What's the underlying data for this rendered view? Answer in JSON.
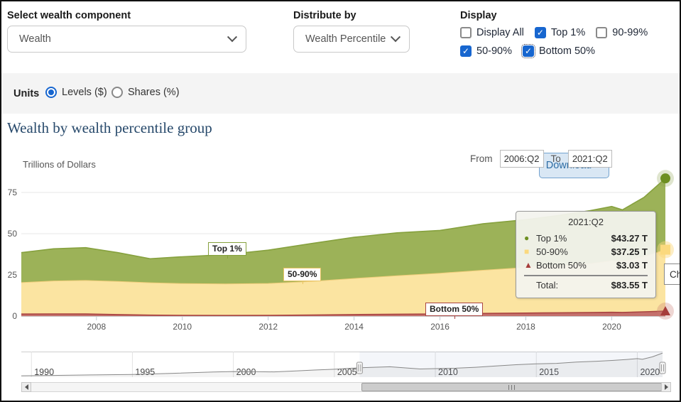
{
  "controls": {
    "component": {
      "label": "Select wealth component",
      "value": "Wealth"
    },
    "distribute": {
      "label": "Distribute by",
      "value": "Wealth Percentile"
    },
    "display": {
      "label": "Display",
      "options": [
        {
          "label": "Display All",
          "checked": false,
          "focused": false
        },
        {
          "label": "Top 1%",
          "checked": true,
          "focused": false
        },
        {
          "label": "90-99%",
          "checked": false,
          "focused": false
        },
        {
          "label": "50-90%",
          "checked": true,
          "focused": false
        },
        {
          "label": "Bottom 50%",
          "checked": true,
          "focused": true
        }
      ]
    }
  },
  "units": {
    "label": "Units",
    "options": [
      {
        "label": "Levels ($)",
        "selected": true
      },
      {
        "label": "Shares (%)",
        "selected": false
      }
    ],
    "download_label": "Download"
  },
  "range": {
    "from_label": "From",
    "from_value": "2006:Q2",
    "to_label": "To",
    "to_value": "2021:Q2"
  },
  "tooltip": {
    "header": "2021:Q2",
    "rows": [
      {
        "name": "Top 1%",
        "value": "$43.27 T",
        "marker": "circle",
        "color": "#6d8f22"
      },
      {
        "name": "50-90%",
        "value": "$37.25 T",
        "marker": "square",
        "color": "#fbd97e"
      },
      {
        "name": "Bottom 50%",
        "value": "$3.03 T",
        "marker": "triangle",
        "color": "#a63d3b"
      }
    ],
    "total_label": "Total:",
    "total_value": "$83.55 T"
  },
  "partial_button": {
    "label": "Ch"
  },
  "icons": {
    "check": "✓",
    "marker_circle": "●",
    "marker_square": "■",
    "marker_triangle": "▲"
  },
  "colors": {
    "accent_blue": "#1766cf",
    "link_blue": "#2e6da4",
    "title_blue": "#27496b"
  },
  "chart_data": {
    "type": "area",
    "stacked": true,
    "title": "Wealth by wealth percentile group",
    "y_axis_title": "Trillions of Dollars",
    "ylim": [
      0,
      87
    ],
    "y_ticks": [
      0,
      25,
      50,
      75
    ],
    "x_ticks": [
      2008,
      2010,
      2012,
      2014,
      2016,
      2018,
      2020
    ],
    "x_range": [
      2006.25,
      2021.25
    ],
    "grid": true,
    "legend": "flags-on-series",
    "x": [
      2006.25,
      2007,
      2007.75,
      2008.5,
      2009.25,
      2010,
      2011,
      2012,
      2013,
      2014,
      2015,
      2016,
      2017,
      2018,
      2018.75,
      2019.5,
      2020,
      2020.25,
      2020.75,
      2021.25
    ],
    "series": [
      {
        "name": "Bottom 50%",
        "marker": "triangle",
        "line": "#a94441",
        "fill": "#c4706c",
        "values": [
          1.2,
          1.3,
          1.25,
          0.9,
          0.55,
          0.45,
          0.35,
          0.4,
          0.6,
          0.9,
          1.1,
          1.3,
          1.6,
          1.8,
          2.0,
          2.1,
          2.3,
          2.2,
          2.6,
          3.03
        ]
      },
      {
        "name": "50-90%",
        "marker": "square",
        "line": "#f0cd7a",
        "fill": "#fbe4a1",
        "values": [
          19.1,
          20.0,
          20.35,
          20.1,
          19.65,
          19.25,
          19.15,
          19.4,
          20.4,
          21.9,
          23.4,
          24.7,
          26.2,
          27.7,
          28.5,
          29.7,
          31.2,
          30.8,
          33.4,
          37.25
        ]
      },
      {
        "name": "Top 1%",
        "marker": "circle",
        "line": "#86a13e",
        "fill": "#9cb258",
        "values": [
          18.2,
          19.5,
          19.9,
          17.5,
          14.6,
          16.3,
          17.8,
          20.2,
          23.0,
          25.0,
          26.0,
          26.0,
          28.2,
          29.0,
          30.5,
          32.2,
          33.0,
          31.5,
          36.0,
          43.27
        ]
      }
    ],
    "navigator": {
      "x_ticks": [
        1990,
        1995,
        2000,
        2005,
        2010,
        2015,
        2020
      ],
      "x_range": [
        1989.5,
        2021.25
      ],
      "selection": [
        2006.25,
        2021.25
      ],
      "x": [
        1989.5,
        1991,
        1993,
        1995,
        1997,
        1999,
        2000,
        2001,
        2002,
        2003,
        2004,
        2005,
        2006.25,
        2007.75,
        2009.25,
        2010,
        2011,
        2012,
        2013,
        2014,
        2015,
        2016,
        2017,
        2018,
        2018.75,
        2019.5,
        2020,
        2020.25,
        2020.75,
        2021.25
      ],
      "total": [
        14,
        15,
        16.5,
        18,
        21.5,
        25.5,
        27,
        26.5,
        26,
        28.5,
        31.5,
        34,
        38.5,
        41.5,
        34.8,
        36,
        37.3,
        40,
        44,
        47.8,
        50.5,
        52,
        56,
        58.5,
        61,
        64,
        66.5,
        64.5,
        72,
        83.55
      ]
    }
  }
}
